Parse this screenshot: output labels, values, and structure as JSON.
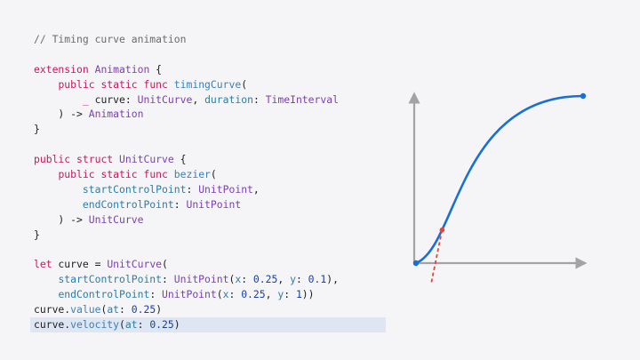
{
  "code": {
    "lines": [
      {
        "hl": false,
        "tokens": [
          {
            "t": "// Timing curve animation",
            "c": "cm"
          }
        ]
      },
      {
        "hl": false,
        "tokens": []
      },
      {
        "hl": false,
        "tokens": [
          {
            "t": "extension",
            "c": "kw"
          },
          {
            "t": " ",
            "c": "pl"
          },
          {
            "t": "Animation",
            "c": "ty"
          },
          {
            "t": " {",
            "c": "pl"
          }
        ]
      },
      {
        "hl": false,
        "tokens": [
          {
            "t": "    ",
            "c": "pl"
          },
          {
            "t": "public",
            "c": "kw"
          },
          {
            "t": " ",
            "c": "pl"
          },
          {
            "t": "static",
            "c": "kw"
          },
          {
            "t": " ",
            "c": "pl"
          },
          {
            "t": "func",
            "c": "kw"
          },
          {
            "t": " ",
            "c": "pl"
          },
          {
            "t": "timingCurve",
            "c": "fn"
          },
          {
            "t": "(",
            "c": "pl"
          }
        ]
      },
      {
        "hl": false,
        "tokens": [
          {
            "t": "        ",
            "c": "pl"
          },
          {
            "t": "_",
            "c": "kw"
          },
          {
            "t": " curve: ",
            "c": "pl"
          },
          {
            "t": "UnitCurve",
            "c": "ty"
          },
          {
            "t": ", ",
            "c": "pl"
          },
          {
            "t": "duration",
            "c": "prm"
          },
          {
            "t": ": ",
            "c": "pl"
          },
          {
            "t": "TimeInterval",
            "c": "ty"
          }
        ]
      },
      {
        "hl": false,
        "tokens": [
          {
            "t": "    ) -> ",
            "c": "pl"
          },
          {
            "t": "Animation",
            "c": "ty"
          }
        ]
      },
      {
        "hl": false,
        "tokens": [
          {
            "t": "}",
            "c": "pl"
          }
        ]
      },
      {
        "hl": false,
        "tokens": []
      },
      {
        "hl": false,
        "tokens": [
          {
            "t": "public",
            "c": "kw"
          },
          {
            "t": " ",
            "c": "pl"
          },
          {
            "t": "struct",
            "c": "kw"
          },
          {
            "t": " ",
            "c": "pl"
          },
          {
            "t": "UnitCurve",
            "c": "ty"
          },
          {
            "t": " {",
            "c": "pl"
          }
        ]
      },
      {
        "hl": false,
        "tokens": [
          {
            "t": "    ",
            "c": "pl"
          },
          {
            "t": "public",
            "c": "kw"
          },
          {
            "t": " ",
            "c": "pl"
          },
          {
            "t": "static",
            "c": "kw"
          },
          {
            "t": " ",
            "c": "pl"
          },
          {
            "t": "func",
            "c": "kw"
          },
          {
            "t": " ",
            "c": "pl"
          },
          {
            "t": "bezier",
            "c": "fn"
          },
          {
            "t": "(",
            "c": "pl"
          }
        ]
      },
      {
        "hl": false,
        "tokens": [
          {
            "t": "        ",
            "c": "pl"
          },
          {
            "t": "startControlPoint",
            "c": "prm"
          },
          {
            "t": ": ",
            "c": "pl"
          },
          {
            "t": "UnitPoint",
            "c": "ty"
          },
          {
            "t": ",",
            "c": "pl"
          }
        ]
      },
      {
        "hl": false,
        "tokens": [
          {
            "t": "        ",
            "c": "pl"
          },
          {
            "t": "endControlPoint",
            "c": "prm"
          },
          {
            "t": ": ",
            "c": "pl"
          },
          {
            "t": "UnitPoint",
            "c": "ty"
          }
        ]
      },
      {
        "hl": false,
        "tokens": [
          {
            "t": "    ) -> ",
            "c": "pl"
          },
          {
            "t": "UnitCurve",
            "c": "ty"
          }
        ]
      },
      {
        "hl": false,
        "tokens": [
          {
            "t": "}",
            "c": "pl"
          }
        ]
      },
      {
        "hl": false,
        "tokens": []
      },
      {
        "hl": false,
        "tokens": [
          {
            "t": "let",
            "c": "kw"
          },
          {
            "t": " curve = ",
            "c": "pl"
          },
          {
            "t": "UnitCurve",
            "c": "ty"
          },
          {
            "t": "(",
            "c": "pl"
          }
        ]
      },
      {
        "hl": false,
        "tokens": [
          {
            "t": "    ",
            "c": "pl"
          },
          {
            "t": "startControlPoint",
            "c": "prm"
          },
          {
            "t": ": ",
            "c": "pl"
          },
          {
            "t": "UnitPoint",
            "c": "ty"
          },
          {
            "t": "(",
            "c": "pl"
          },
          {
            "t": "x",
            "c": "prm"
          },
          {
            "t": ": ",
            "c": "pl"
          },
          {
            "t": "0.25",
            "c": "num"
          },
          {
            "t": ", ",
            "c": "pl"
          },
          {
            "t": "y",
            "c": "prm"
          },
          {
            "t": ": ",
            "c": "pl"
          },
          {
            "t": "0.1",
            "c": "num"
          },
          {
            "t": "),",
            "c": "pl"
          }
        ]
      },
      {
        "hl": false,
        "tokens": [
          {
            "t": "    ",
            "c": "pl"
          },
          {
            "t": "endControlPoint",
            "c": "prm"
          },
          {
            "t": ": ",
            "c": "pl"
          },
          {
            "t": "UnitPoint",
            "c": "ty"
          },
          {
            "t": "(",
            "c": "pl"
          },
          {
            "t": "x",
            "c": "prm"
          },
          {
            "t": ": ",
            "c": "pl"
          },
          {
            "t": "0.25",
            "c": "num"
          },
          {
            "t": ", ",
            "c": "pl"
          },
          {
            "t": "y",
            "c": "prm"
          },
          {
            "t": ": ",
            "c": "pl"
          },
          {
            "t": "1",
            "c": "num"
          },
          {
            "t": "))",
            "c": "pl"
          }
        ]
      },
      {
        "hl": false,
        "tokens": [
          {
            "t": "curve.",
            "c": "pl"
          },
          {
            "t": "value",
            "c": "fn"
          },
          {
            "t": "(",
            "c": "pl"
          },
          {
            "t": "at",
            "c": "prm"
          },
          {
            "t": ": ",
            "c": "pl"
          },
          {
            "t": "0.25",
            "c": "num"
          },
          {
            "t": ")",
            "c": "pl"
          }
        ]
      },
      {
        "hl": true,
        "tokens": [
          {
            "t": "curve.",
            "c": "pl"
          },
          {
            "t": "velocity",
            "c": "fn"
          },
          {
            "t": "(",
            "c": "pl"
          },
          {
            "t": "at",
            "c": "prm"
          },
          {
            "t": ": ",
            "c": "pl"
          },
          {
            "t": "0.25",
            "c": "num"
          },
          {
            "t": ")",
            "c": "pl"
          }
        ]
      }
    ]
  },
  "chart_data": {
    "type": "line",
    "series": [
      {
        "values": []
      }
    ],
    "bezier": {
      "start": [
        0,
        0
      ],
      "cp1": [
        0.25,
        0.1
      ],
      "cp2": [
        0.25,
        1
      ],
      "end": [
        1,
        1
      ]
    },
    "marker": {
      "t": 0.25
    },
    "tangent": "velocity",
    "xlim": [
      0,
      1
    ],
    "ylim": [
      0,
      1
    ],
    "colors": {
      "curve": "#1a6fd6",
      "axis": "#a3a3a3",
      "marker": "#e0463a",
      "tangent": "#e0463a"
    }
  }
}
